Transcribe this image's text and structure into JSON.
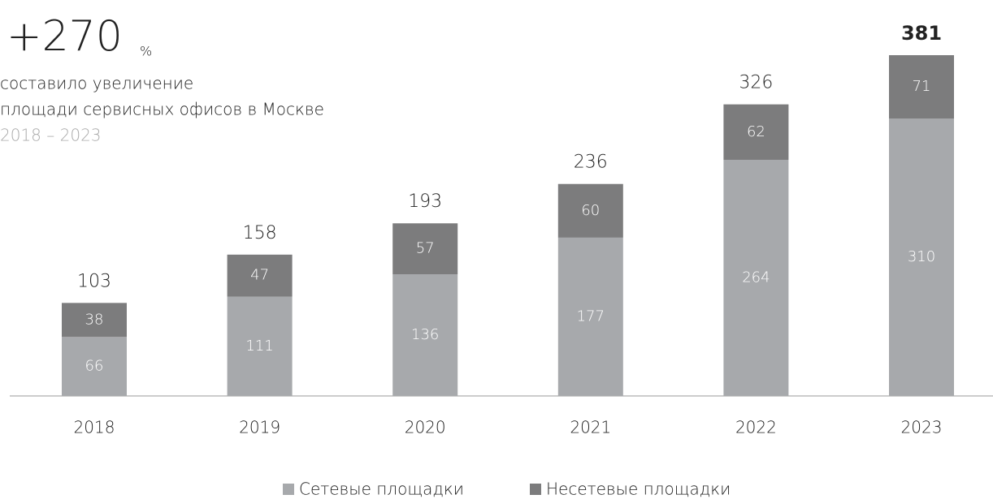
{
  "headline": {
    "value": "+270",
    "unit": "%",
    "lines": [
      "составило увеличение",
      "площади сервисных офисов в Москве"
    ],
    "period": "2018 – 2023"
  },
  "chart_data": {
    "type": "stacked_bar",
    "categories": [
      "2018",
      "2019",
      "2020",
      "2021",
      "2022",
      "2023"
    ],
    "series": [
      {
        "name": "Сетевые площадки",
        "color": "#a7a9ac",
        "values": [
          66,
          111,
          136,
          177,
          264,
          310
        ]
      },
      {
        "name": "Несетевые площадки",
        "color": "#7c7c7d",
        "values": [
          38,
          47,
          57,
          60,
          62,
          71
        ]
      }
    ],
    "totals": [
      103,
      158,
      193,
      236,
      326,
      381
    ]
  }
}
